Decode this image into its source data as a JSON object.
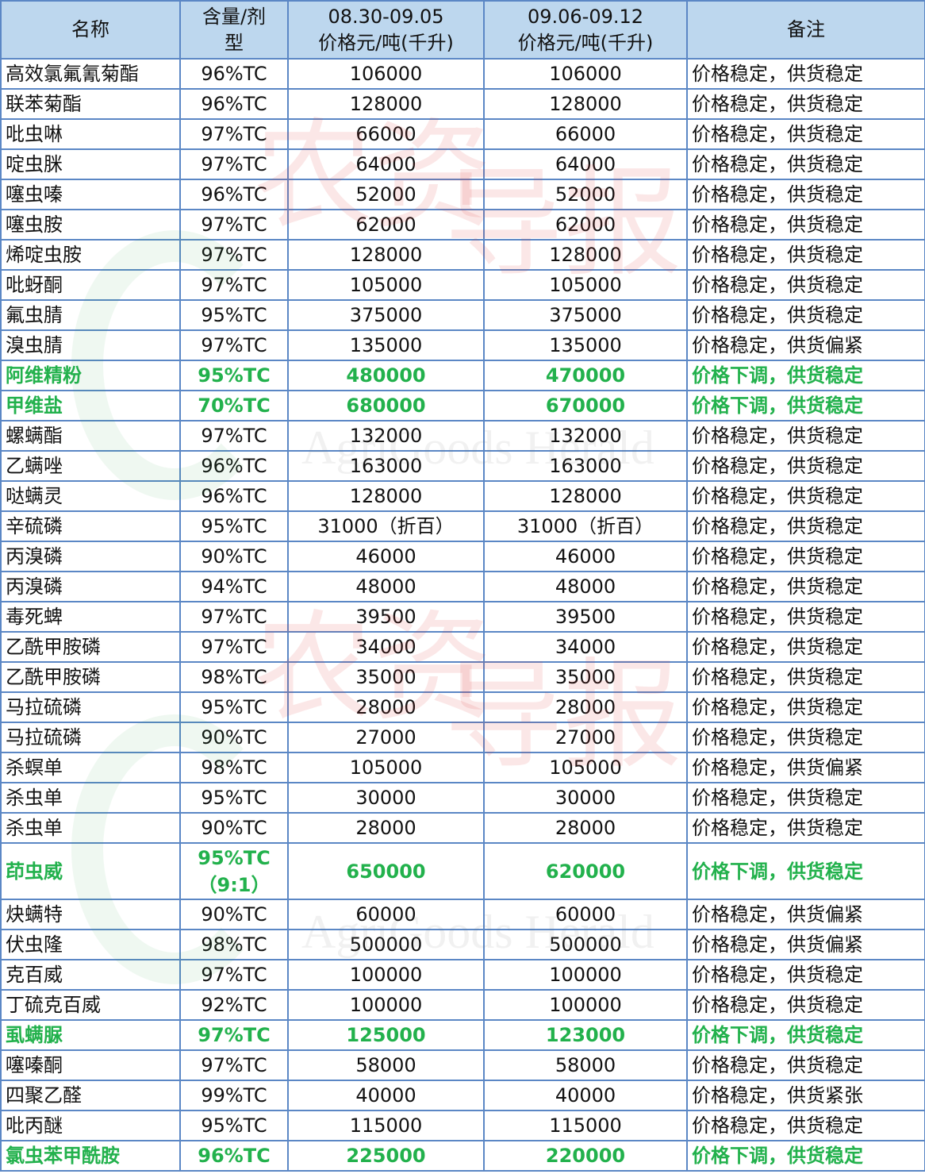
{
  "headers": [
    "名称",
    "含量/剂型",
    "08.30-09.05\n价格元/吨(千升)",
    "09.06-09.12\n价格元/吨(千升)",
    "备注"
  ],
  "header_lines": {
    "c1a": "含量/剂",
    "c1b": "型",
    "c2a": "08.30-09.05",
    "c2b": "价格元/吨(千升)",
    "c3a": "09.06-09.12",
    "c3b": "价格元/吨(千升)"
  },
  "colors": {
    "header_bg": "#bdd7ee",
    "border": "#5b87c5",
    "highlight": "#22b14c"
  },
  "watermark": {
    "logo_text": "农资导报",
    "english": "AgriGoods Herald"
  },
  "rows": [
    {
      "name": "高效氯氟氰菊酯",
      "spec": "96%TC",
      "p1": "106000",
      "p2": "106000",
      "note": "价格稳定，供货稳定"
    },
    {
      "name": "联苯菊酯",
      "spec": "96%TC",
      "p1": "128000",
      "p2": "128000",
      "note": "价格稳定，供货稳定"
    },
    {
      "name": "吡虫啉",
      "spec": "97%TC",
      "p1": "66000",
      "p2": "66000",
      "note": "价格稳定，供货稳定"
    },
    {
      "name": "啶虫脒",
      "spec": "97%TC",
      "p1": "64000",
      "p2": "64000",
      "note": "价格稳定，供货稳定"
    },
    {
      "name": "噻虫嗪",
      "spec": "96%TC",
      "p1": "52000",
      "p2": "52000",
      "note": "价格稳定，供货稳定"
    },
    {
      "name": "噻虫胺",
      "spec": "97%TC",
      "p1": "62000",
      "p2": "62000",
      "note": "价格稳定，供货稳定"
    },
    {
      "name": "烯啶虫胺",
      "spec": "97%TC",
      "p1": "128000",
      "p2": "128000",
      "note": "价格稳定，供货稳定"
    },
    {
      "name": "吡蚜酮",
      "spec": "97%TC",
      "p1": "105000",
      "p2": "105000",
      "note": "价格稳定，供货稳定"
    },
    {
      "name": "氟虫腈",
      "spec": "95%TC",
      "p1": "375000",
      "p2": "375000",
      "note": "价格稳定，供货稳定"
    },
    {
      "name": "溴虫腈",
      "spec": "97%TC",
      "p1": "135000",
      "p2": "135000",
      "note": "价格稳定，供货偏紧"
    },
    {
      "name": "阿维精粉",
      "spec": "95%TC",
      "p1": "480000",
      "p2": "470000",
      "note": "价格下调，供货稳定",
      "hl": true
    },
    {
      "name": "甲维盐",
      "spec": "70%TC",
      "p1": "680000",
      "p2": "670000",
      "note": "价格下调，供货稳定",
      "hl": true
    },
    {
      "name": "螺螨酯",
      "spec": "97%TC",
      "p1": "132000",
      "p2": "132000",
      "note": "价格稳定，供货稳定"
    },
    {
      "name": "乙螨唑",
      "spec": "96%TC",
      "p1": "163000",
      "p2": "163000",
      "note": "价格稳定，供货稳定"
    },
    {
      "name": "哒螨灵",
      "spec": "96%TC",
      "p1": "128000",
      "p2": "128000",
      "note": "价格稳定，供货稳定"
    },
    {
      "name": "辛硫磷",
      "spec": "95%TC",
      "p1": "31000（折百）",
      "p2": "31000（折百）",
      "note": "价格稳定，供货稳定"
    },
    {
      "name": "丙溴磷",
      "spec": "90%TC",
      "p1": "46000",
      "p2": "46000",
      "note": "价格稳定，供货稳定"
    },
    {
      "name": "丙溴磷",
      "spec": "94%TC",
      "p1": "48000",
      "p2": "48000",
      "note": "价格稳定，供货稳定"
    },
    {
      "name": "毒死蜱",
      "spec": "97%TC",
      "p1": "39500",
      "p2": "39500",
      "note": "价格稳定，供货稳定"
    },
    {
      "name": "乙酰甲胺磷",
      "spec": "97%TC",
      "p1": "34000",
      "p2": "34000",
      "note": "价格稳定，供货稳定"
    },
    {
      "name": "乙酰甲胺磷",
      "spec": "98%TC",
      "p1": "35000",
      "p2": "35000",
      "note": "价格稳定，供货稳定"
    },
    {
      "name": "马拉硫磷",
      "spec": "95%TC",
      "p1": "28000",
      "p2": "28000",
      "note": "价格稳定，供货稳定"
    },
    {
      "name": "马拉硫磷",
      "spec": "90%TC",
      "p1": "27000",
      "p2": "27000",
      "note": "价格稳定，供货稳定"
    },
    {
      "name": "杀螟单",
      "spec": "98%TC",
      "p1": "105000",
      "p2": "105000",
      "note": "价格稳定，供货偏紧"
    },
    {
      "name": "杀虫单",
      "spec": "95%TC",
      "p1": "30000",
      "p2": "30000",
      "note": "价格稳定，供货稳定"
    },
    {
      "name": "杀虫单",
      "spec": "90%TC",
      "p1": "28000",
      "p2": "28000",
      "note": "价格稳定，供货稳定"
    },
    {
      "name": "茚虫威",
      "spec": "95%TC",
      "spec2": "（9:1）",
      "p1": "650000",
      "p2": "620000",
      "note": "价格下调，供货稳定",
      "hl": true,
      "tall": true
    },
    {
      "name": "炔螨特",
      "spec": "90%TC",
      "p1": "60000",
      "p2": "60000",
      "note": "价格稳定，供货偏紧"
    },
    {
      "name": "伏虫隆",
      "spec": "98%TC",
      "p1": "500000",
      "p2": "500000",
      "note": "价格稳定，供货偏紧"
    },
    {
      "name": "克百威",
      "spec": "97%TC",
      "p1": "100000",
      "p2": "100000",
      "note": "价格稳定，供货稳定"
    },
    {
      "name": "丁硫克百威",
      "spec": "92%TC",
      "p1": "100000",
      "p2": "100000",
      "note": "价格稳定，供货稳定"
    },
    {
      "name": "虱螨脲",
      "spec": "97%TC",
      "p1": "125000",
      "p2": "123000",
      "note": "价格下调，供货稳定",
      "hl": true
    },
    {
      "name": "噻嗪酮",
      "spec": "97%TC",
      "p1": "58000",
      "p2": "58000",
      "note": "价格稳定，供货稳定"
    },
    {
      "name": "四聚乙醛",
      "spec": "99%TC",
      "p1": "40000",
      "p2": "40000",
      "note": "价格稳定，供货紧张"
    },
    {
      "name": "吡丙醚",
      "spec": "95%TC",
      "p1": "115000",
      "p2": "115000",
      "note": "价格稳定，供货稳定"
    },
    {
      "name": "氯虫苯甲酰胺",
      "spec": "96%TC",
      "p1": "225000",
      "p2": "220000",
      "note": "价格下调，供货稳定",
      "hl": true
    }
  ]
}
